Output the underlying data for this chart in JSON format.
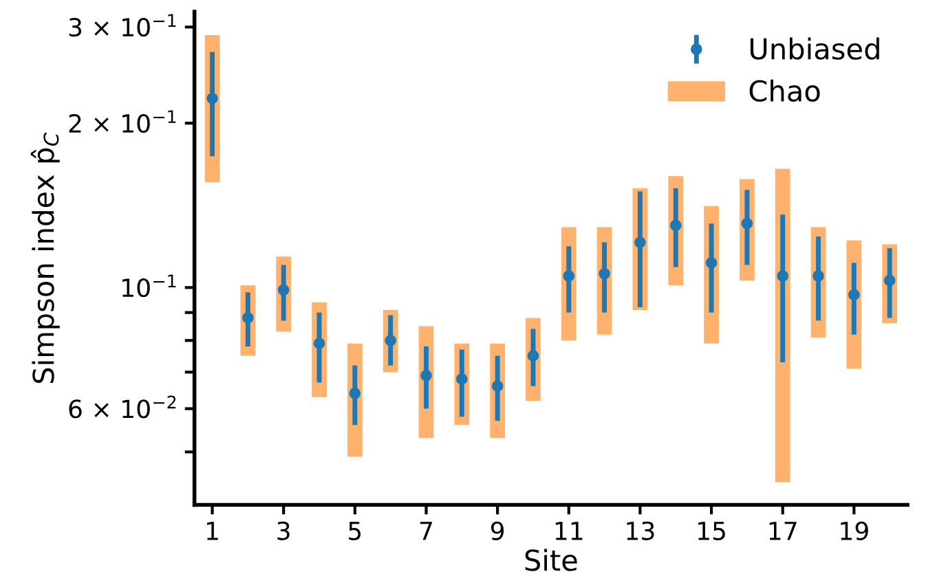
{
  "chart_data": {
    "type": "scatter",
    "xlabel": "Site",
    "ylabel": "Simpson index p̂$_{C}$",
    "x": [
      1,
      2,
      3,
      4,
      5,
      6,
      7,
      8,
      9,
      10,
      11,
      12,
      13,
      14,
      15,
      16,
      17,
      18,
      19,
      20
    ],
    "xlim": [
      0.5,
      20.5
    ],
    "xticks": [
      1,
      3,
      5,
      7,
      9,
      11,
      13,
      15,
      17,
      19
    ],
    "log": true,
    "ylim": [
      0.04,
      0.32
    ],
    "yticks": [
      {
        "value": 0.3,
        "label": "3 × 10$^{−1}$"
      },
      {
        "value": 0.2,
        "label": "2 × 10$^{−1}$"
      },
      {
        "value": 0.1,
        "label": "10$^{−1}$"
      },
      {
        "value": 0.09,
        "label": null
      },
      {
        "value": 0.08,
        "label": null
      },
      {
        "value": 0.07,
        "label": null
      },
      {
        "value": 0.06,
        "label": "6 × 10$^{−2}$"
      },
      {
        "value": 0.05,
        "label": null
      }
    ],
    "grid": false,
    "legend": "top right",
    "series": [
      {
        "name": "Chao",
        "type": "bar",
        "color": "#ff7f0e",
        "base": [
          0.156,
          0.075,
          0.083,
          0.063,
          0.049,
          0.07,
          0.053,
          0.056,
          0.053,
          0.062,
          0.08,
          0.082,
          0.091,
          0.101,
          0.079,
          0.103,
          0.044,
          0.081,
          0.071,
          0.086
        ],
        "values": [
          0.134,
          0.026,
          0.031,
          0.031,
          0.03,
          0.021,
          0.032,
          0.023,
          0.026,
          0.026,
          0.049,
          0.047,
          0.061,
          0.059,
          0.062,
          0.055,
          0.121,
          0.048,
          0.051,
          0.034
        ]
      },
      {
        "name": "Unbiased",
        "color": "#1f77b4",
        "marker": "circle",
        "values": [
          0.222,
          0.088,
          0.099,
          0.079,
          0.064,
          0.08,
          0.069,
          0.068,
          0.066,
          0.075,
          0.105,
          0.106,
          0.121,
          0.13,
          0.111,
          0.131,
          0.105,
          0.105,
          0.097,
          0.103
        ],
        "errors": [
          [
            0.174,
            0.27
          ],
          [
            0.078,
            0.098
          ],
          [
            0.087,
            0.11
          ],
          [
            0.067,
            0.09
          ],
          [
            0.056,
            0.072
          ],
          [
            0.072,
            0.089
          ],
          [
            0.06,
            0.078
          ],
          [
            0.058,
            0.077
          ],
          [
            0.057,
            0.075
          ],
          [
            0.066,
            0.084
          ],
          [
            0.09,
            0.119
          ],
          [
            0.09,
            0.121
          ],
          [
            0.092,
            0.15
          ],
          [
            0.109,
            0.152
          ],
          [
            0.09,
            0.131
          ],
          [
            0.11,
            0.151
          ],
          [
            0.073,
            0.136
          ],
          [
            0.087,
            0.124
          ],
          [
            0.082,
            0.111
          ],
          [
            0.088,
            0.118
          ]
        ]
      }
    ]
  }
}
